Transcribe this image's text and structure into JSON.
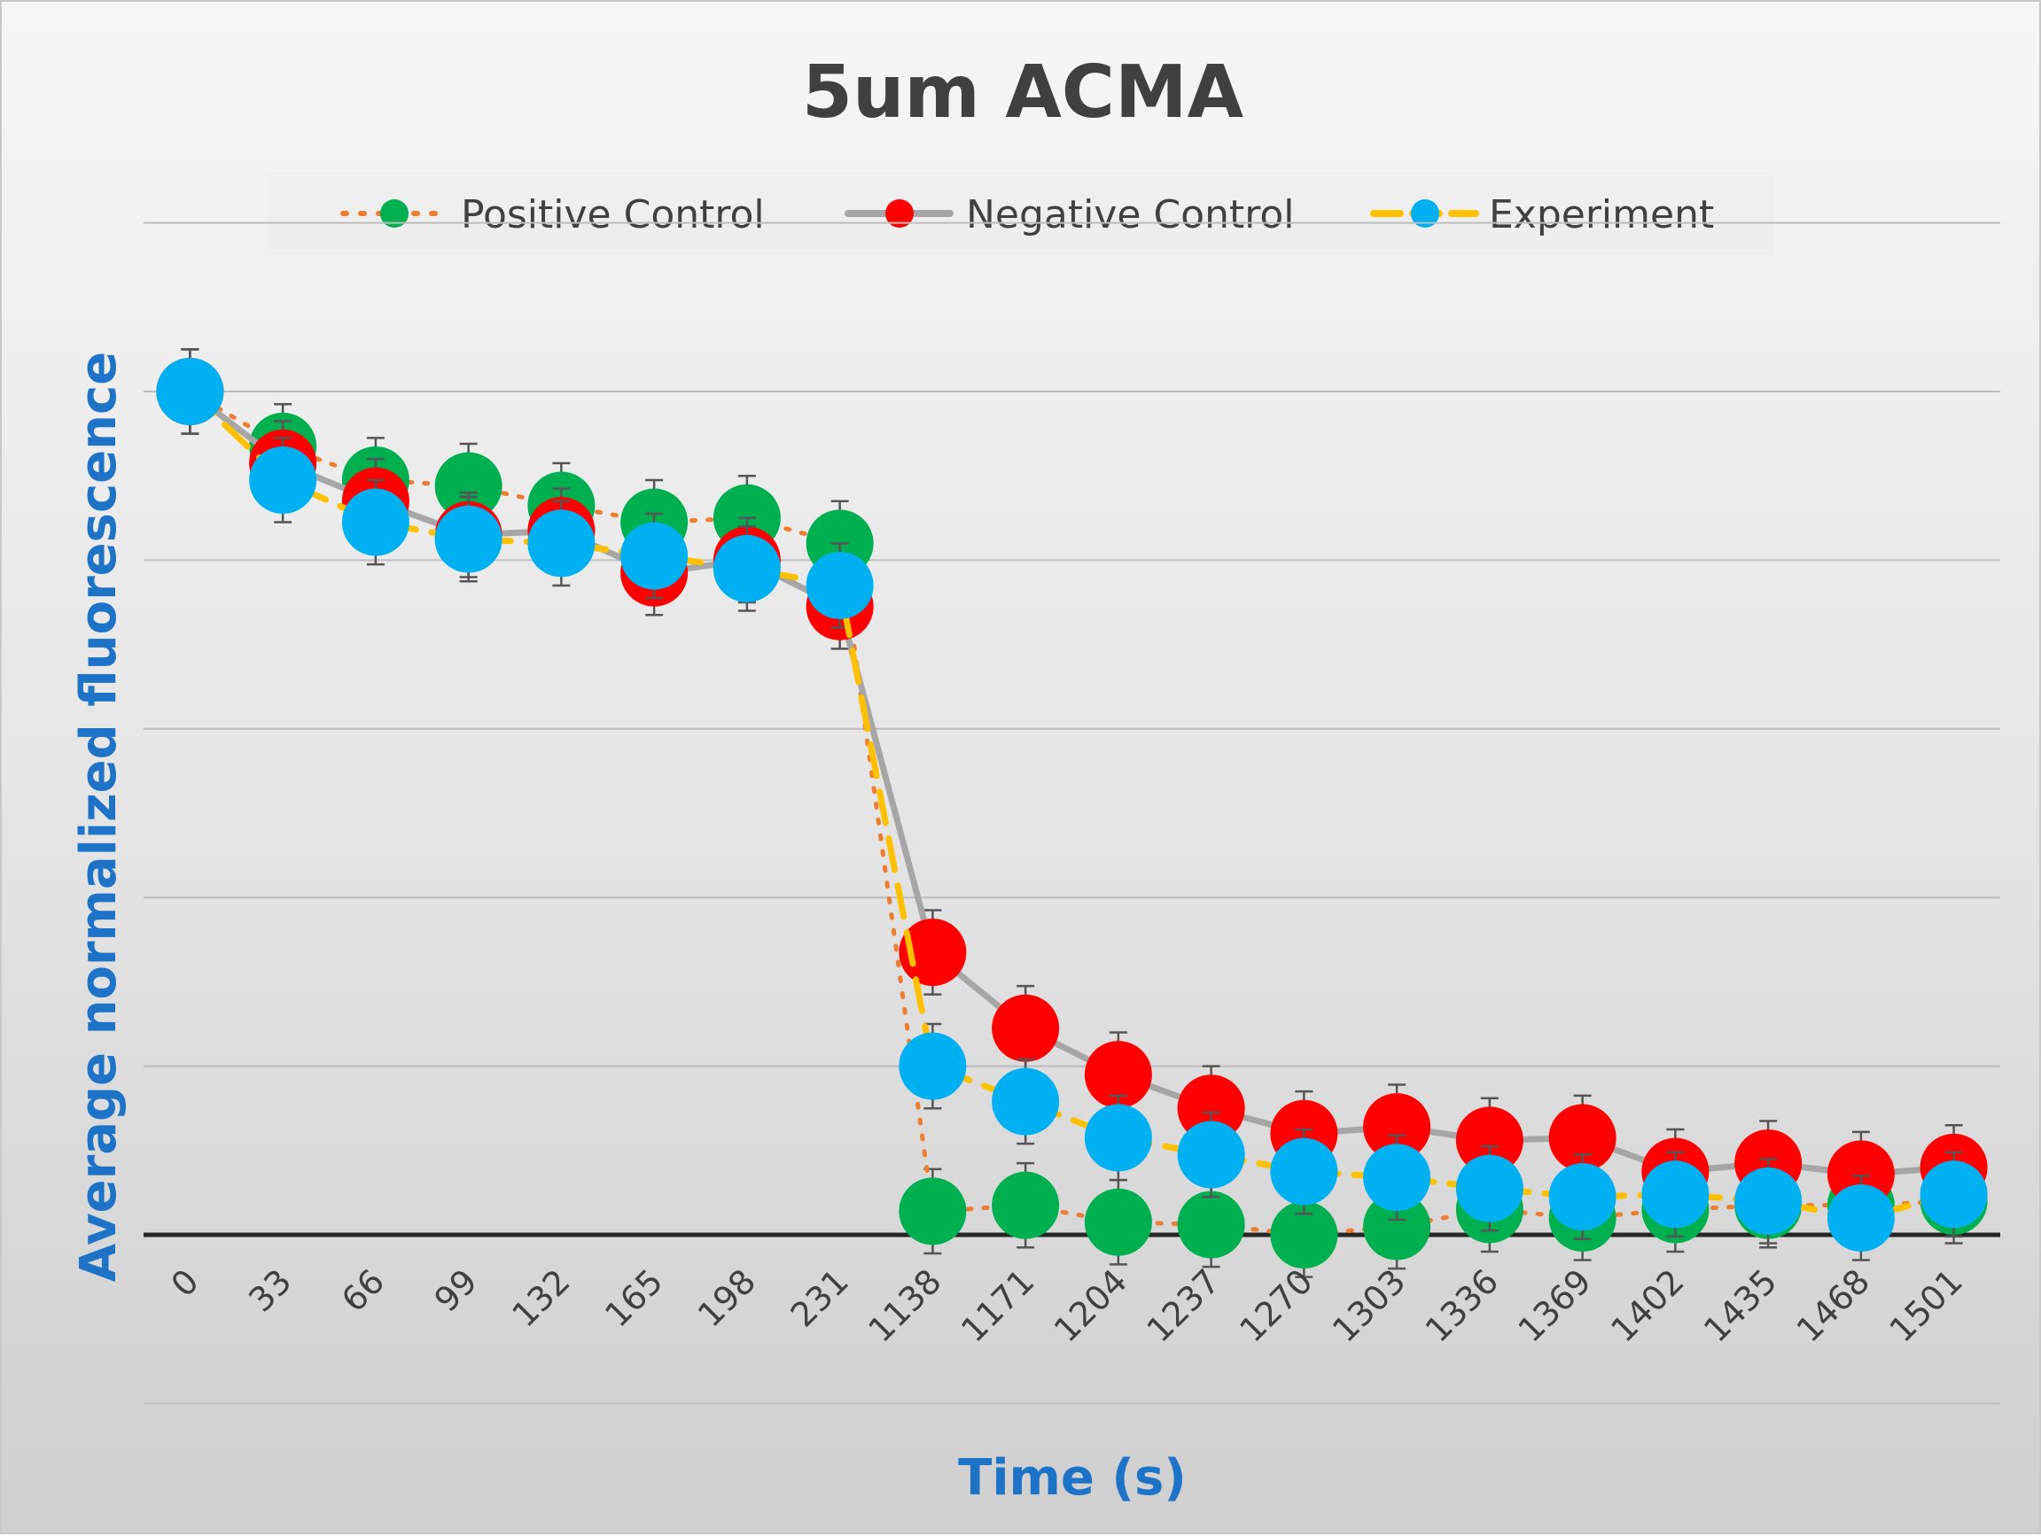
{
  "chart_data": {
    "type": "line",
    "title": "5um ACMA",
    "xlabel": "Time (s)",
    "ylabel": "Average normalized fluorescence",
    "categories": [
      "0",
      "33",
      "66",
      "99",
      "132",
      "165",
      "198",
      "231",
      "1138",
      "1171",
      "1204",
      "1237",
      "1270",
      "1303",
      "1336",
      "1369",
      "1402",
      "1435",
      "1468",
      "1501"
    ],
    "ylim": [
      0,
      1.15
    ],
    "y_tick_labels_shown": false,
    "grid": true,
    "legend": "top",
    "series": [
      {
        "name": "Positive Control",
        "line_color": "#ed7d31",
        "marker_color": "#00b050",
        "line_style": "dotted",
        "values": [
          1.0,
          0.935,
          0.895,
          0.888,
          0.865,
          0.845,
          0.85,
          0.82,
          0.028,
          0.035,
          0.015,
          0.012,
          0.0,
          0.01,
          0.03,
          0.02,
          0.03,
          0.035,
          0.035,
          0.04
        ],
        "errors": [
          0.05,
          0.05,
          0.05,
          0.05,
          0.05,
          0.05,
          0.05,
          0.05,
          0.05,
          0.05,
          0.05,
          0.05,
          0.05,
          0.05,
          0.05,
          0.05,
          0.05,
          0.05,
          0.05,
          0.05
        ]
      },
      {
        "name": "Negative Control",
        "line_color": "#a6a6a6",
        "marker_color": "#ff0000",
        "line_style": "solid",
        "values": [
          1.0,
          0.915,
          0.87,
          0.83,
          0.835,
          0.785,
          0.8,
          0.745,
          0.335,
          0.245,
          0.19,
          0.15,
          0.12,
          0.128,
          0.112,
          0.115,
          0.075,
          0.085,
          0.072,
          0.08
        ],
        "errors": [
          0.05,
          0.05,
          0.05,
          0.05,
          0.05,
          0.05,
          0.05,
          0.05,
          0.05,
          0.05,
          0.05,
          0.05,
          0.05,
          0.05,
          0.05,
          0.05,
          0.05,
          0.05,
          0.05,
          0.05
        ]
      },
      {
        "name": "Experiment",
        "line_color": "#ffc000",
        "marker_color": "#00b0f0",
        "line_style": "dashed",
        "values": [
          1.0,
          0.895,
          0.845,
          0.825,
          0.82,
          0.805,
          0.79,
          0.77,
          0.2,
          0.158,
          0.115,
          0.095,
          0.075,
          0.068,
          0.055,
          0.045,
          0.048,
          0.04,
          0.02,
          0.048
        ],
        "errors": [
          0.05,
          0.05,
          0.05,
          0.05,
          0.05,
          0.05,
          0.05,
          0.05,
          0.05,
          0.05,
          0.05,
          0.05,
          0.05,
          0.05,
          0.05,
          0.05,
          0.05,
          0.05,
          0.05,
          0.05
        ]
      }
    ]
  }
}
